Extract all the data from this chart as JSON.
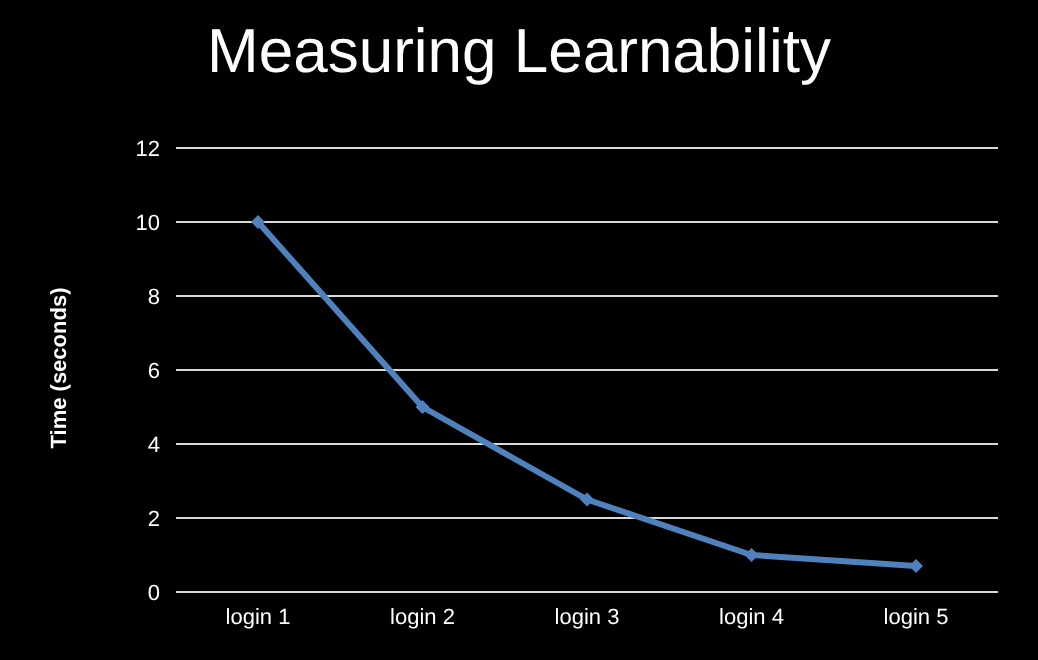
{
  "chart_data": {
    "type": "line",
    "title": "Measuring Learnability",
    "ylabel": "Time (seconds)",
    "categories": [
      "login 1",
      "login 2",
      "login 3",
      "login 4",
      "login 5"
    ],
    "series": [
      {
        "color": "#4f81bd",
        "values": [
          10,
          5,
          2.5,
          1,
          0.7
        ]
      }
    ],
    "ylim": [
      0,
      12
    ],
    "yticks": [
      0,
      2,
      4,
      6,
      8,
      10,
      12
    ],
    "grid": "y",
    "legend": false,
    "marker": "diamond",
    "line_style": "solid"
  }
}
